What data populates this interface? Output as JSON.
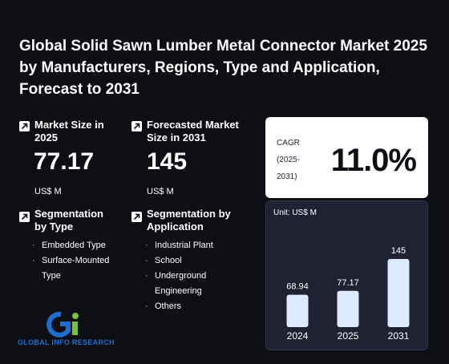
{
  "title": "Global Solid Sawn Lumber Metal Connector Market 2025 by Manufacturers, Regions, Type and Application, Forecast to 2031",
  "market_size": {
    "label": "Market Size in 2025",
    "value": "77.17",
    "unit": "US$ M"
  },
  "forecast_size": {
    "label": "Forecasted Market Size in 2031",
    "value": "145",
    "unit": "US$ M"
  },
  "segment_type": {
    "label": "Segmentation by Type",
    "items": [
      "Embedded Type",
      "Surface-Mounted Type"
    ]
  },
  "segment_application": {
    "label": "Segmentation by Application",
    "items": [
      "Industrial Plant",
      "School",
      "Underground Engineering",
      "Others"
    ]
  },
  "cagr": {
    "label": "CAGR (2025-2031)",
    "value": "11.0%"
  },
  "brand": {
    "name": "GLOBAL INFO RESEARCH",
    "accent": "#1a6fd1",
    "accent_green": "#7ac143"
  },
  "chart_data": {
    "type": "bar",
    "unit_label": "Unit: US$ M",
    "categories": [
      "2024",
      "2025",
      "2031"
    ],
    "values": [
      68.94,
      77.17,
      145
    ],
    "value_labels": [
      "68.94",
      "77.17",
      "145"
    ],
    "ylim": [
      0,
      145
    ],
    "bar_color": "#dce9ff"
  }
}
